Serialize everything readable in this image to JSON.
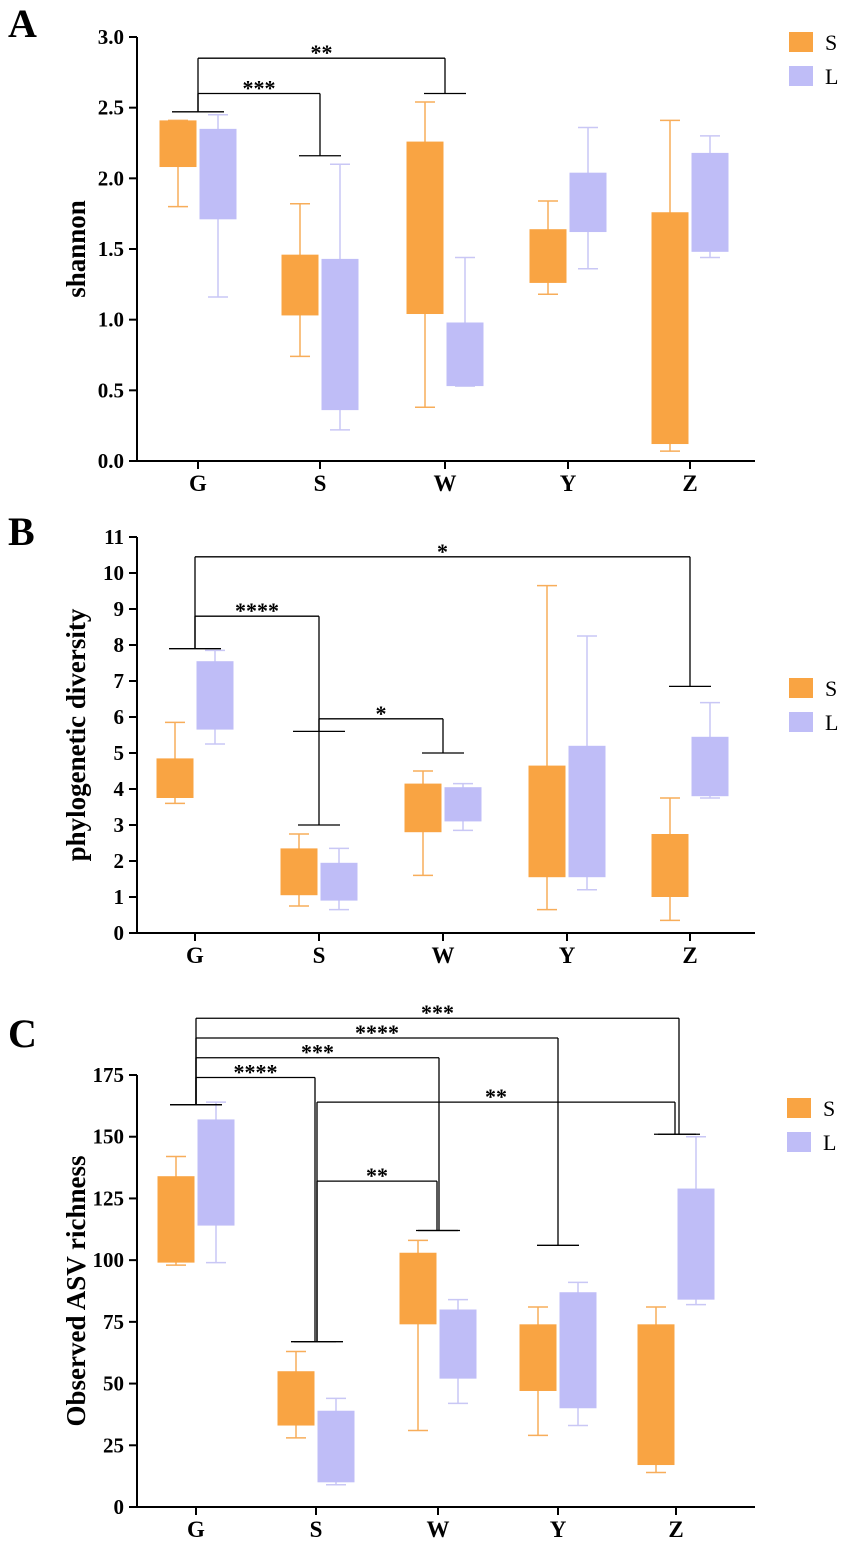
{
  "colors": {
    "S": "#F9A443",
    "L": "#BFBDF7",
    "S_whisker": "#F7AD5A",
    "L_whisker": "#C9C7F5",
    "axis": "#000000"
  },
  "chart_data": [
    {
      "panel_label": "A",
      "type": "box",
      "ylabel": "shannon",
      "categories": [
        "G",
        "S",
        "W",
        "Y",
        "Z"
      ],
      "ylim": [
        0,
        3.0
      ],
      "yticks": [
        0.0,
        0.5,
        1.0,
        1.5,
        2.0,
        2.5,
        3.0
      ],
      "ytick_labels": [
        "0.0",
        "0.5",
        "1.0",
        "1.5",
        "2.0",
        "2.5",
        "3.0"
      ],
      "legend": [
        {
          "key": "S",
          "label": "S"
        },
        {
          "key": "L",
          "label": "L"
        }
      ],
      "legend_position": "top-right",
      "series": [
        {
          "name": "S",
          "boxes": [
            {
              "min": 1.8,
              "q1": 2.08,
              "q3": 2.41,
              "max": 2.41
            },
            {
              "min": 0.74,
              "q1": 1.03,
              "q3": 1.46,
              "max": 1.82
            },
            {
              "min": 0.38,
              "q1": 1.04,
              "q3": 2.26,
              "max": 2.54
            },
            {
              "min": 1.18,
              "q1": 1.26,
              "q3": 1.64,
              "max": 1.84
            },
            {
              "min": 0.07,
              "q1": 0.12,
              "q3": 1.76,
              "max": 2.41
            }
          ]
        },
        {
          "name": "L",
          "boxes": [
            {
              "min": 1.16,
              "q1": 1.71,
              "q3": 2.35,
              "max": 2.45
            },
            {
              "min": 0.22,
              "q1": 0.36,
              "q3": 1.43,
              "max": 2.1
            },
            {
              "min": 0.53,
              "q1": 0.53,
              "q3": 0.98,
              "max": 1.44
            },
            {
              "min": 1.36,
              "q1": 1.62,
              "q3": 2.04,
              "max": 2.36
            },
            {
              "min": 1.44,
              "q1": 1.48,
              "q3": 2.18,
              "max": 2.3
            }
          ]
        }
      ],
      "annotations": [
        {
          "label": "**",
          "from": 0,
          "to": 2,
          "y": 2.85,
          "from_cap": 2.47,
          "to_cap": 2.6
        },
        {
          "label": "***",
          "from": 0,
          "to": 1,
          "y": 2.6,
          "from_cap": 2.47,
          "to_cap": 2.16
        }
      ]
    },
    {
      "panel_label": "B",
      "type": "box",
      "ylabel": "phylogenetic diversity",
      "categories": [
        "G",
        "S",
        "W",
        "Y",
        "Z"
      ],
      "ylim": [
        0,
        11
      ],
      "yticks": [
        0,
        1,
        2,
        3,
        4,
        5,
        6,
        7,
        8,
        9,
        10,
        11
      ],
      "ytick_labels": [
        "0",
        "1",
        "2",
        "3",
        "4",
        "5",
        "6",
        "7",
        "8",
        "9",
        "10",
        "11"
      ],
      "legend": [
        {
          "key": "S",
          "label": "S"
        },
        {
          "key": "L",
          "label": "L"
        }
      ],
      "legend_position": "right",
      "series": [
        {
          "name": "S",
          "boxes": [
            {
              "min": 3.6,
              "q1": 3.75,
              "q3": 4.85,
              "max": 5.85
            },
            {
              "min": 0.75,
              "q1": 1.05,
              "q3": 2.35,
              "max": 2.75
            },
            {
              "min": 1.6,
              "q1": 2.8,
              "q3": 4.15,
              "max": 4.5
            },
            {
              "min": 0.65,
              "q1": 1.55,
              "q3": 4.65,
              "max": 9.65
            },
            {
              "min": 0.35,
              "q1": 1.0,
              "q3": 2.75,
              "max": 3.75
            }
          ]
        },
        {
          "name": "L",
          "boxes": [
            {
              "min": 5.25,
              "q1": 5.65,
              "q3": 7.55,
              "max": 7.85
            },
            {
              "min": 0.65,
              "q1": 0.9,
              "q3": 1.95,
              "max": 2.35
            },
            {
              "min": 2.85,
              "q1": 3.1,
              "q3": 4.05,
              "max": 4.15
            },
            {
              "min": 1.2,
              "q1": 1.55,
              "q3": 5.2,
              "max": 8.25
            },
            {
              "min": 3.75,
              "q1": 3.8,
              "q3": 5.45,
              "max": 6.4
            }
          ]
        }
      ],
      "annotations": [
        {
          "label": "*",
          "from": 0,
          "to": 4,
          "y": 10.45,
          "from_cap": 7.9,
          "to_cap": 6.85
        },
        {
          "label": "****",
          "from": 0,
          "to": 1,
          "y": 8.8,
          "from_cap": 7.9,
          "to_cap": 3.0
        },
        {
          "label": "*",
          "from": 1,
          "to": 2,
          "y": 5.95,
          "from_cap": 5.6,
          "to_cap": 5.0
        }
      ]
    },
    {
      "panel_label": "C",
      "type": "box",
      "ylabel": "Observed ASV richness",
      "categories": [
        "G",
        "S",
        "W",
        "Y",
        "Z"
      ],
      "ylim": [
        0,
        175
      ],
      "yticks": [
        0,
        25,
        50,
        75,
        100,
        125,
        150,
        175
      ],
      "ytick_labels": [
        "0",
        "25",
        "50",
        "75",
        "100",
        "125",
        "150",
        "175"
      ],
      "legend": [
        {
          "key": "S",
          "label": "S"
        },
        {
          "key": "L",
          "label": "L"
        }
      ],
      "legend_position": "right",
      "series": [
        {
          "name": "S",
          "boxes": [
            {
              "min": 98,
              "q1": 99,
              "q3": 134,
              "max": 142
            },
            {
              "min": 28,
              "q1": 33,
              "q3": 55,
              "max": 63
            },
            {
              "min": 31,
              "q1": 74,
              "q3": 103,
              "max": 108
            },
            {
              "min": 29,
              "q1": 47,
              "q3": 74,
              "max": 81
            },
            {
              "min": 14,
              "q1": 17,
              "q3": 74,
              "max": 81
            }
          ]
        },
        {
          "name": "L",
          "boxes": [
            {
              "min": 99,
              "q1": 114,
              "q3": 157,
              "max": 164
            },
            {
              "min": 9,
              "q1": 10,
              "q3": 39,
              "max": 44
            },
            {
              "min": 42,
              "q1": 52,
              "q3": 80,
              "max": 84
            },
            {
              "min": 33,
              "q1": 40,
              "q3": 87,
              "max": 91
            },
            {
              "min": 82,
              "q1": 84,
              "q3": 129,
              "max": 150
            }
          ]
        }
      ],
      "annotations": [
        {
          "label": "***",
          "from": 0,
          "to": 4,
          "y": 198,
          "from_cap": 163,
          "to_cap": 151,
          "to_offset": 1.5
        },
        {
          "label": "****",
          "from": 0,
          "to": 3,
          "y": 190,
          "from_cap": 163,
          "to_cap": 106
        },
        {
          "label": "***",
          "from": 0,
          "to": 2,
          "y": 182,
          "from_cap": 163,
          "to_cap": 112,
          "to_offset": 0.5
        },
        {
          "label": "****",
          "from": 0,
          "to": 1,
          "y": 174,
          "from_cap": 163,
          "to_cap": 67,
          "to_offset": -0.5
        },
        {
          "label": "**",
          "from": 1,
          "to": 4,
          "y": 164,
          "from_cap": 67,
          "to_cap": 151,
          "from_offset": 0.5,
          "to_offset": -0.5
        },
        {
          "label": "**",
          "from": 1,
          "to": 2,
          "y": 132,
          "from_cap": 67,
          "to_cap": 112,
          "from_offset": 0.5,
          "to_offset": -0.5
        }
      ]
    }
  ]
}
